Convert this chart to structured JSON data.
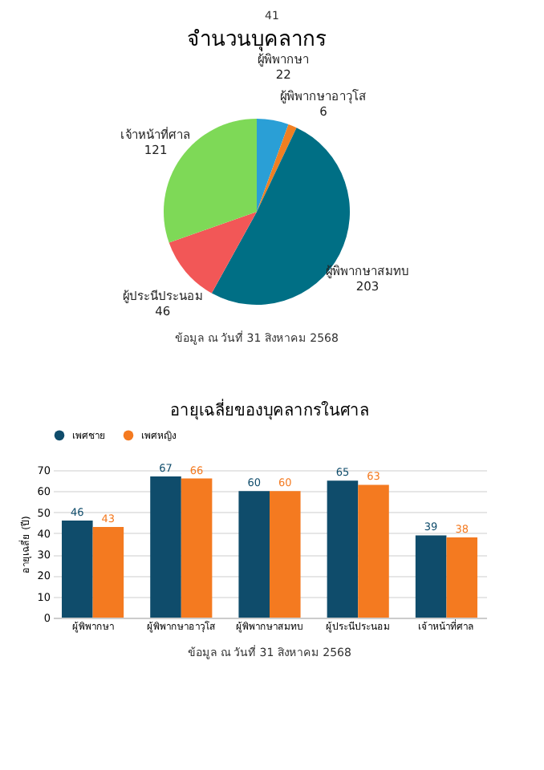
{
  "chart_data": [
    {
      "type": "pie",
      "title": "จำนวนบุคลากร",
      "categories": [
        "ผู้พิพากษา",
        "ผู้พิพากษาอาวุโส",
        "ผู้พิพากษาสมทบ",
        "ผู้ประนีประนอม",
        "เจ้าหน้าที่ศาล"
      ],
      "values": [
        22,
        6,
        203,
        46,
        121
      ],
      "colors": [
        "#2a9fd6",
        "#f07f22",
        "#006f85",
        "#f25757",
        "#7ed957"
      ],
      "data_labels": true,
      "annotations": [
        "41",
        "ข้อมูล ณ วันที่ 31 สิงหาคม 2568"
      ]
    },
    {
      "type": "bar",
      "title": "อายุเฉลี่ยของบุคลากรในศาล",
      "ylabel": "อายุเฉลี่ย (ปี)",
      "categories": [
        "ผู้พิพากษา",
        "ผู้พิพากษาอาวุโส",
        "ผู้พิพากษาสมทบ",
        "ผู้ประนีประนอม",
        "เจ้าหน้าที่ศาล"
      ],
      "series": [
        {
          "name": "เพศชาย",
          "color": "#0f4c6b",
          "values": [
            46,
            67,
            60,
            65,
            39
          ]
        },
        {
          "name": "เพศหญิง",
          "color": "#f47a20",
          "values": [
            43,
            66,
            60,
            63,
            38
          ]
        }
      ],
      "ylim": [
        0,
        70
      ],
      "yticks": [
        0,
        10,
        20,
        30,
        40,
        50,
        60,
        70
      ],
      "grid": "y",
      "legend": "top",
      "data_labels": true,
      "annotations": [
        "ข้อมูล ณ วันที่ 31 สิงหาคม 2568"
      ]
    }
  ]
}
